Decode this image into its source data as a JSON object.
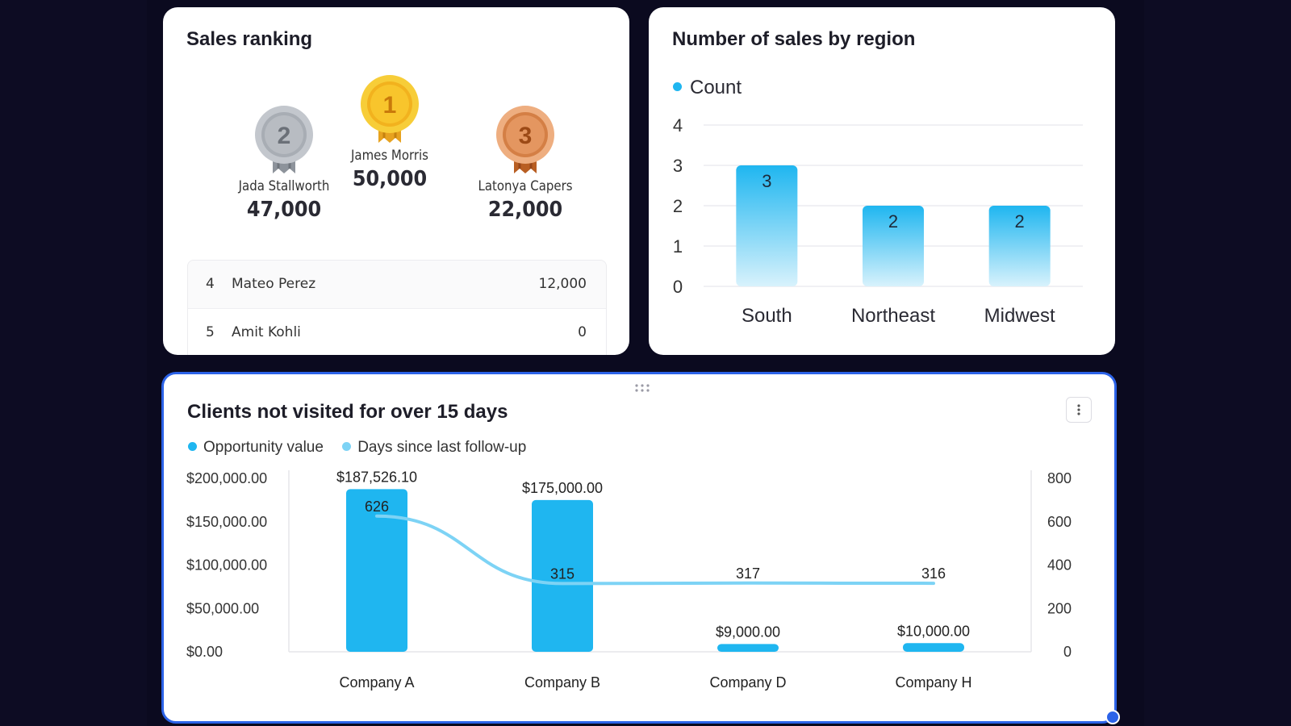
{
  "sales_ranking": {
    "title": "Sales ranking",
    "podium": [
      {
        "rank": "2",
        "name": "Jada Stallworth",
        "value": "47,000"
      },
      {
        "rank": "1",
        "name": "James Morris",
        "value": "50,000"
      },
      {
        "rank": "3",
        "name": "Latonya Capers",
        "value": "22,000"
      }
    ],
    "list": [
      {
        "rank": "4",
        "name": "Mateo Perez",
        "value": "12,000"
      },
      {
        "rank": "5",
        "name": "Amit Kohli",
        "value": "0"
      }
    ]
  },
  "region_chart": {
    "title": "Number of sales by region",
    "legend": "Count",
    "chart_data": {
      "type": "bar",
      "title": "Number of sales by region",
      "categories": [
        "South",
        "Northeast",
        "Midwest"
      ],
      "series": [
        {
          "name": "Count",
          "values": [
            3,
            2,
            2
          ]
        }
      ],
      "ylim": [
        0,
        4
      ],
      "yticks": [
        "0",
        "1",
        "2",
        "3",
        "4"
      ],
      "grid": true,
      "legend_position": "top-left",
      "color": "#1fb6f0"
    }
  },
  "clients_chart": {
    "title": "Clients not visited for over 15 days",
    "legend": [
      "Opportunity value",
      "Days since last follow-up"
    ],
    "chart_data": {
      "type": "bar",
      "title": "Clients not visited for over 15 days",
      "categories": [
        "Company A",
        "Company B",
        "Company D",
        "Company H"
      ],
      "series": [
        {
          "name": "Opportunity value",
          "type": "bar",
          "axis": "left",
          "values": [
            187526.1,
            175000.0,
            9000.0,
            10000.0
          ],
          "labels": [
            "$187,526.10",
            "$175,000.00",
            "$9,000.00",
            "$10,000.00"
          ]
        },
        {
          "name": "Days since last follow-up",
          "type": "line",
          "axis": "right",
          "values": [
            626,
            315,
            317,
            316
          ],
          "labels": [
            "626",
            "315",
            "317",
            "316"
          ]
        }
      ],
      "ylim_left": [
        0,
        200000
      ],
      "yticks_left": [
        "$0.00",
        "$50,000.00",
        "$100,000.00",
        "$150,000.00",
        "$200,000.00"
      ],
      "ylim_right": [
        0,
        800
      ],
      "yticks_right": [
        "0",
        "200",
        "400",
        "600",
        "800"
      ],
      "legend_position": "top-left",
      "bar_color": "#1fb6f0",
      "line_color": "#7dd3f5"
    }
  },
  "colors": {
    "accent": "#1fb6f0",
    "line": "#7dd3f5",
    "selection": "#2c63e8"
  },
  "icons": {
    "drag": "drag-dots-icon",
    "more": "more-vertical-icon"
  }
}
